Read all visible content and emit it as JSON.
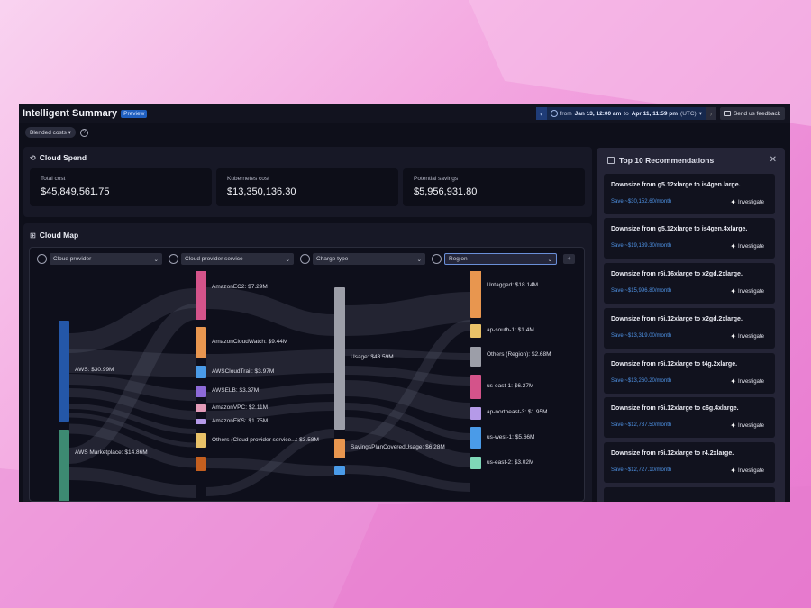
{
  "header": {
    "title": "Intelligent Summary",
    "badge": "Preview",
    "date_prefix": "from",
    "date_start": "Jan 13, 12:00 am",
    "date_to": "to",
    "date_end": "Apr 11, 11:59 pm",
    "timezone": "(UTC)",
    "feedback_label": "Send us feedback"
  },
  "cost_type": "Blended costs",
  "spend": {
    "title": "Cloud Spend",
    "stats": [
      {
        "label": "Total cost",
        "value": "$45,849,561.75"
      },
      {
        "label": "Kubernetes cost",
        "value": "$13,350,136.30"
      },
      {
        "label": "Potential savings",
        "value": "$5,956,931.80"
      }
    ]
  },
  "map": {
    "title": "Cloud Map",
    "filters": [
      "Cloud provider",
      "Cloud provider service",
      "Charge type",
      "Region"
    ],
    "nodes": {
      "col1": [
        "AWS: $30.99M",
        "AWS Marketplace: $14.86M"
      ],
      "col2": [
        "AmazonEC2: $7.29M",
        "AmazonCloudWatch: $9.44M",
        "AWSCloudTrail: $3.97M",
        "AWSELB: $3.37M",
        "AmazonVPC: $2.11M",
        "AmazonEKS: $1.75M",
        "Others (Cloud provider service...: $3.58M"
      ],
      "col3": [
        "Usage: $43.59M",
        "SavingsPlanCoveredUsage: $6.28M"
      ],
      "col4": [
        "Untagged: $18.14M",
        "ap-south-1: $1.4M",
        "Others (Region): $2.68M",
        "us-east-1: $6.27M",
        "ap-northeast-3: $1.95M",
        "us-west-1: $5.66M",
        "us-east-2: $3.02M"
      ]
    },
    "colors": {
      "aws": "#2457a8",
      "marketplace": "#3d8a72",
      "ec2": "#d4538a",
      "cloudwatch": "#e8964f",
      "cloudtrail": "#4a9be8",
      "elb": "#8d6ad8",
      "vpc": "#e39bb8",
      "eks": "#b59ae8",
      "others_service": "#e8c168",
      "usage": "#9c9ea8",
      "savings": "#e8964f",
      "untagged": "#e8964f",
      "ap_south": "#e8c168",
      "others_region": "#9c9ea8",
      "us_east_1": "#d4538a",
      "ap_northeast": "#b59ae8",
      "us_west_1": "#4a9be8",
      "us_east_2": "#7fd8b8"
    }
  },
  "recommendations": {
    "title": "Top 10 Recommendations",
    "investigate_label": "Investigate",
    "items": [
      {
        "title": "Downsize from g5.12xlarge to is4gen.large.",
        "save": "Save ~$30,152.60/month"
      },
      {
        "title": "Downsize from g5.12xlarge to is4gen.4xlarge.",
        "save": "Save ~$19,139.30/month"
      },
      {
        "title": "Downsize from r6i.16xlarge to x2gd.2xlarge.",
        "save": "Save ~$15,996.80/month"
      },
      {
        "title": "Downsize from r6i.12xlarge to x2gd.2xlarge.",
        "save": "Save ~$13,319.00/month"
      },
      {
        "title": "Downsize from r6i.12xlarge to t4g.2xlarge.",
        "save": "Save ~$13,260.20/month"
      },
      {
        "title": "Downsize from r6i.12xlarge to c6g.4xlarge.",
        "save": "Save ~$12,737.50/month"
      },
      {
        "title": "Downsize from r6i.12xlarge to r4.2xlarge.",
        "save": "Save ~$12,727.10/month"
      }
    ]
  }
}
